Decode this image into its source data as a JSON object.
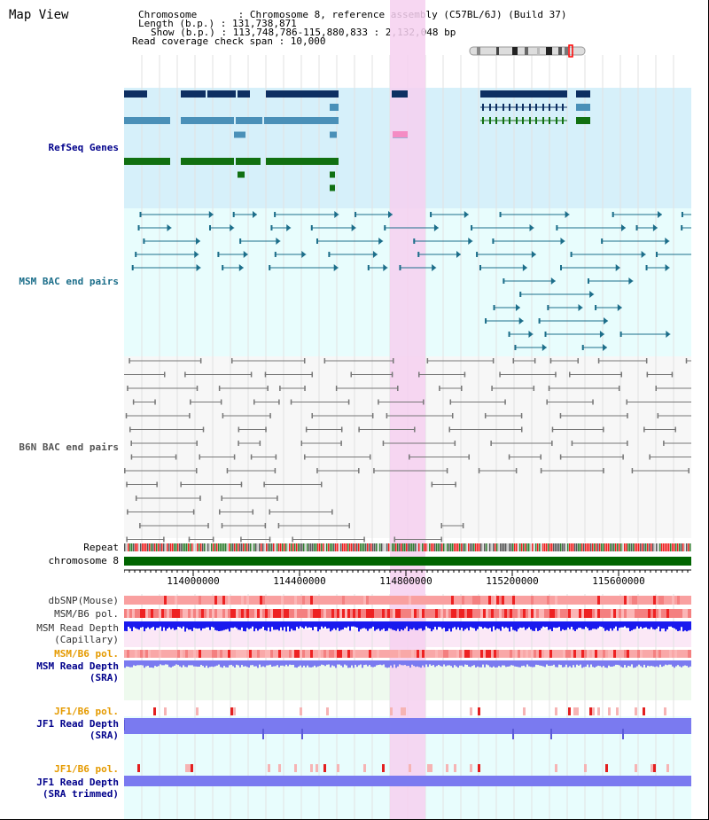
{
  "view": {
    "title": "Map View"
  },
  "header": {
    "chromosome": "Chromosome       : Chromosome 8, reference assembly (C57BL/6J) (Build 37)",
    "length": "Length (b.p.) : 131,738,871",
    "show": "Show (b.p.) : 113,748,786-115,880,833 : 2,132,048 bp",
    "coverage": "Read coverage check span : 10,000"
  },
  "tracks": {
    "refseq": "RefSeq Genes",
    "msm_bac": "MSM BAC end pairs",
    "b6n_bac": "B6N BAC end pairs",
    "repeat": "Repeat",
    "chromosome": "chromosome 8",
    "dbsnp": "dbSNP(Mouse)",
    "msm_pol1": "MSM/B6 pol.",
    "msm_depth_cap_1": "MSM Read Depth",
    "msm_depth_cap_2": "(Capillary)",
    "msm_pol2": "MSM/B6 pol.",
    "msm_depth_sra_1": "MSM Read Depth",
    "msm_depth_sra_2": "(SRA)",
    "jf1_pol1": "JF1/B6 pol.",
    "jf1_depth_sra_1": "JF1 Read Depth",
    "jf1_depth_sra_2": "(SRA)",
    "jf1_pol2": "JF1/B6 pol.",
    "jf1_depth_trim_1": "JF1 Read Depth",
    "jf1_depth_trim_2": "(SRA trimmed)"
  },
  "axis": {
    "ticks": [
      "114000000",
      "114400000",
      "114800000",
      "115200000",
      "115600000"
    ]
  },
  "colors": {
    "refseq_bg": "#d6f0fa",
    "bac_bg": "#e8fdfd",
    "highlight": "#f6d0f0",
    "dark_gene": "#0e2f62",
    "mid_gene": "#4a90b8",
    "green_gene": "#117011",
    "msm_bac": "#1c6e8a",
    "b6n_bac": "#777777",
    "chromosome_bar": "#006400",
    "depth_blue": "#1a1aee",
    "depth_light": "#7a7af0",
    "pol_red": "#ee2222",
    "label_blue": "#00008b",
    "label_teal": "#1c6e8a",
    "label_orange": "#e59a00"
  }
}
